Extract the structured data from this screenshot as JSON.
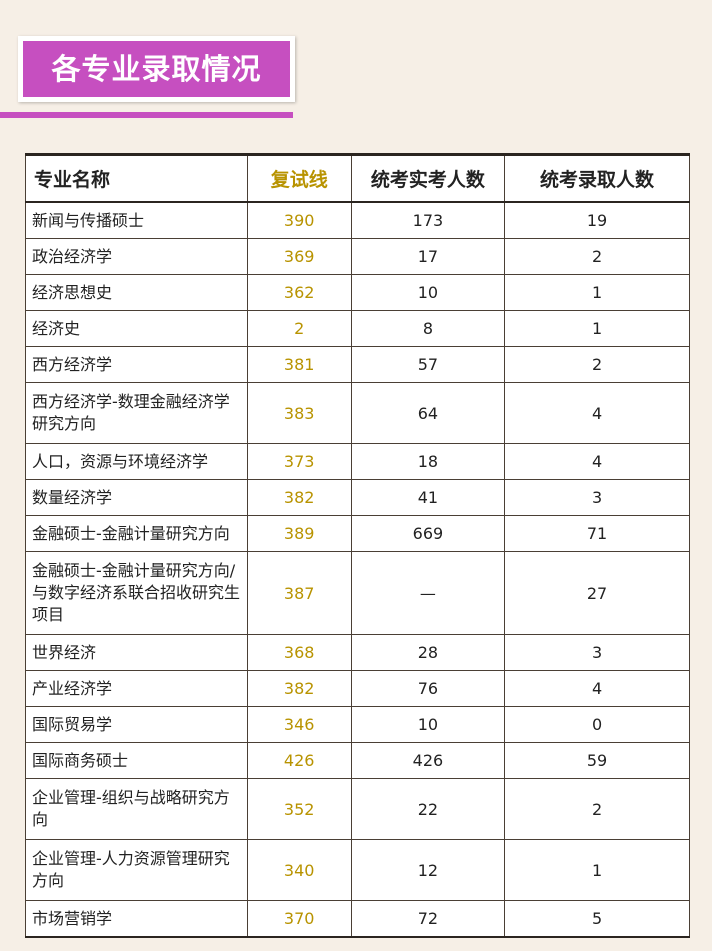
{
  "title": "各专业录取情况",
  "colors": {
    "accent": "#c64fc0",
    "score": "#b89300"
  },
  "table": {
    "headers": [
      "专业名称",
      "复试线",
      "统考实考人数",
      "统考录取人数"
    ],
    "rows": [
      {
        "name": "新闻与传播硕士",
        "score": "390",
        "exam": "173",
        "admit": "19"
      },
      {
        "name": "政治经济学",
        "score": "369",
        "exam": "17",
        "admit": "2"
      },
      {
        "name": "经济思想史",
        "score": "362",
        "exam": "10",
        "admit": "1"
      },
      {
        "name": "经济史",
        "score": "2",
        "exam": "8",
        "admit": "1"
      },
      {
        "name": "西方经济学",
        "score": "381",
        "exam": "57",
        "admit": "2"
      },
      {
        "name": "西方经济学-数理金融经济学研究方向",
        "score": "383",
        "exam": "64",
        "admit": "4"
      },
      {
        "name": "人口，资源与环境经济学",
        "score": "373",
        "exam": "18",
        "admit": "4"
      },
      {
        "name": "数量经济学",
        "score": "382",
        "exam": "41",
        "admit": "3"
      },
      {
        "name": "金融硕士-金融计量研究方向",
        "score": "389",
        "exam": "669",
        "admit": "71"
      },
      {
        "name": "金融硕士-金融计量研究方向/与数字经济系联合招收研究生项目",
        "score": "387",
        "exam": "—",
        "admit": "27"
      },
      {
        "name": "世界经济",
        "score": "368",
        "exam": "28",
        "admit": "3"
      },
      {
        "name": "产业经济学",
        "score": "382",
        "exam": "76",
        "admit": "4"
      },
      {
        "name": "国际贸易学",
        "score": "346",
        "exam": "10",
        "admit": "0"
      },
      {
        "name": "国际商务硕士",
        "score": "426",
        "exam": "426",
        "admit": "59"
      },
      {
        "name": "企业管理-组织与战略研究方向",
        "score": "352",
        "exam": "22",
        "admit": "2"
      },
      {
        "name": "企业管理-人力资源管理研究方向",
        "score": "340",
        "exam": "12",
        "admit": "1"
      },
      {
        "name": "市场营销学",
        "score": "370",
        "exam": "72",
        "admit": "5"
      }
    ]
  }
}
